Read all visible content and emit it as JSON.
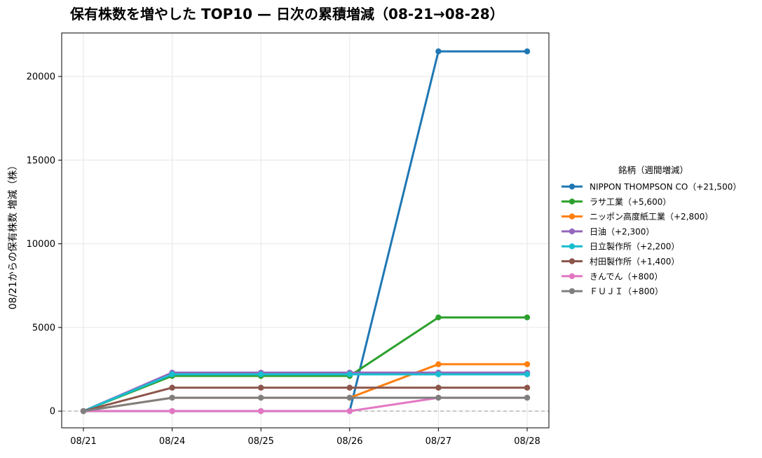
{
  "chart_data": {
    "type": "line",
    "title": "保有株数を増やした TOP10 — 日次の累積増減（08-21→08-28）",
    "xlabel": "",
    "ylabel": "08/21からの保有株数 増減（株）",
    "categories": [
      "08/21",
      "08/24",
      "08/25",
      "08/26",
      "08/27",
      "08/28"
    ],
    "ylim": [
      -1000,
      22600
    ],
    "yticks": [
      0,
      5000,
      10000,
      15000,
      20000
    ],
    "ytick_labels": [
      "0",
      "5000",
      "10000",
      "15000",
      "20000"
    ],
    "grid": true,
    "baseline_dashed_at": 0,
    "legend": {
      "title": "銘柄（週間増減）",
      "placement": "outside-right"
    },
    "series": [
      {
        "name": "NIPPON THOMPSON CO（+21,500）",
        "color": "#1f77b4",
        "values": [
          0,
          0,
          0,
          0,
          21500,
          21500
        ]
      },
      {
        "name": "ラサ工業（+5,600）",
        "color": "#2ca02c",
        "values": [
          0,
          2100,
          2100,
          2100,
          5600,
          5600
        ]
      },
      {
        "name": "ニッポン高度紙工業（+2,800）",
        "color": "#ff7f0e",
        "values": [
          0,
          800,
          800,
          800,
          2800,
          2800
        ]
      },
      {
        "name": "日油（+2,300）",
        "color": "#9467bd",
        "values": [
          0,
          2300,
          2300,
          2300,
          2300,
          2300
        ]
      },
      {
        "name": "日立製作所（+2,200）",
        "color": "#17becf",
        "values": [
          0,
          2200,
          2200,
          2200,
          2200,
          2200
        ]
      },
      {
        "name": "村田製作所（+1,400）",
        "color": "#8c564b",
        "values": [
          0,
          1400,
          1400,
          1400,
          1400,
          1400
        ]
      },
      {
        "name": "きんでん（+800）",
        "color": "#e377c2",
        "values": [
          0,
          0,
          0,
          0,
          800,
          800
        ]
      },
      {
        "name": "ＦＵＪＩ（+800）",
        "color": "#7f7f7f",
        "values": [
          0,
          800,
          800,
          800,
          800,
          800
        ]
      }
    ]
  }
}
